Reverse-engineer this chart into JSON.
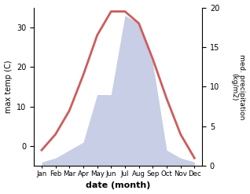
{
  "months": [
    "Jan",
    "Feb",
    "Mar",
    "Apr",
    "May",
    "Jun",
    "Jul",
    "Aug",
    "Sep",
    "Oct",
    "Nov",
    "Dec"
  ],
  "temperature": [
    -1,
    3,
    9,
    18,
    28,
    34,
    34,
    31,
    22,
    12,
    3,
    -3
  ],
  "precipitation": [
    0.5,
    1,
    2,
    3,
    9,
    9,
    19,
    18,
    13,
    2,
    1,
    0.5
  ],
  "temp_color": "#cd5c5c",
  "precip_fill_color": "#aab4d8",
  "precip_fill_alpha": 0.65,
  "temp_ylim": [
    -5,
    35
  ],
  "precip_ylim": [
    0,
    20
  ],
  "temp_yticks": [
    0,
    10,
    20,
    30
  ],
  "precip_yticks": [
    0,
    5,
    10,
    15,
    20
  ],
  "ylabel_left": "max temp (C)",
  "ylabel_right": "med. precipitation\n(kg/m2)",
  "xlabel": "date (month)",
  "temp_linewidth": 2.0,
  "background_color": "#ffffff"
}
